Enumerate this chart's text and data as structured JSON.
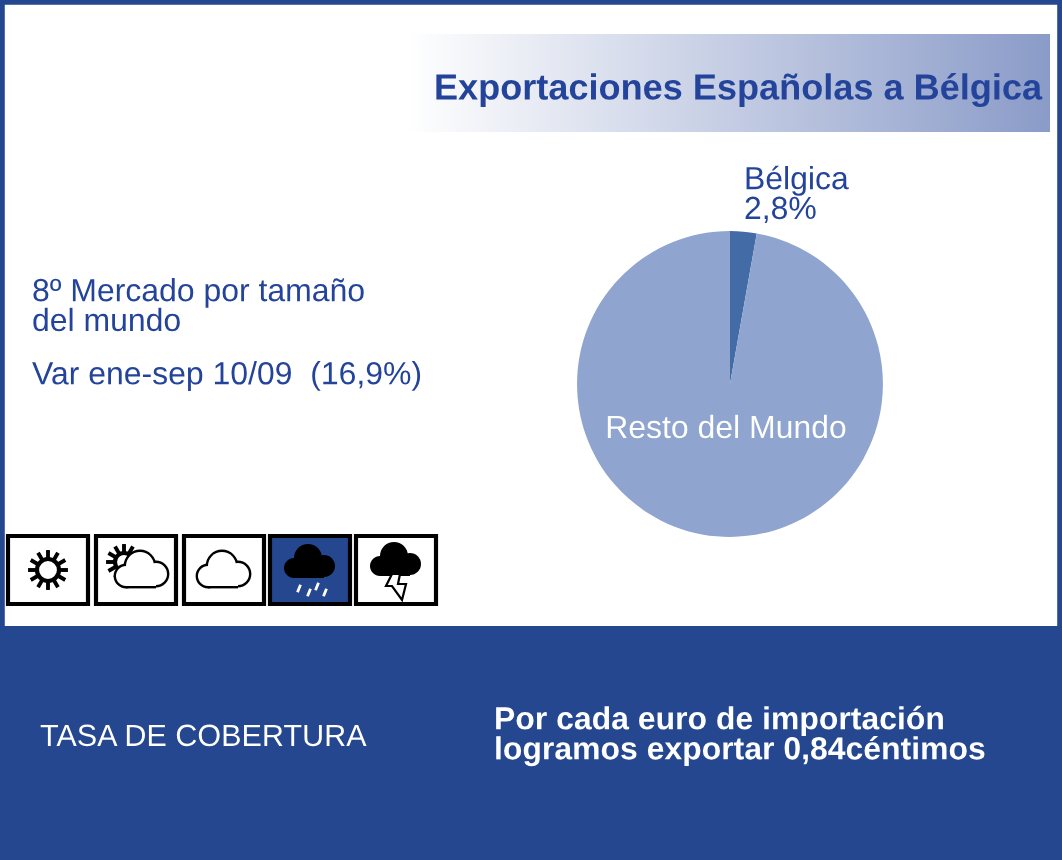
{
  "chart_data": {
    "type": "pie",
    "title": "Exportaciones Españolas a Bélgica",
    "categories": [
      "Bélgica",
      "Resto del Mundo"
    ],
    "values": [
      2.8,
      97.2
    ],
    "colors": [
      "#436ca6",
      "#8fa4ce"
    ],
    "value_labels": [
      "2,8%",
      null
    ],
    "annotations": [
      "8º Mercado por tamaño\ndel mundo",
      "Var ene-sep 10/09  (16,9%)",
      "TASA DE COBERTURA",
      "Por cada euro de importación\nlogramos exportar 0,84céntimos"
    ]
  }
}
